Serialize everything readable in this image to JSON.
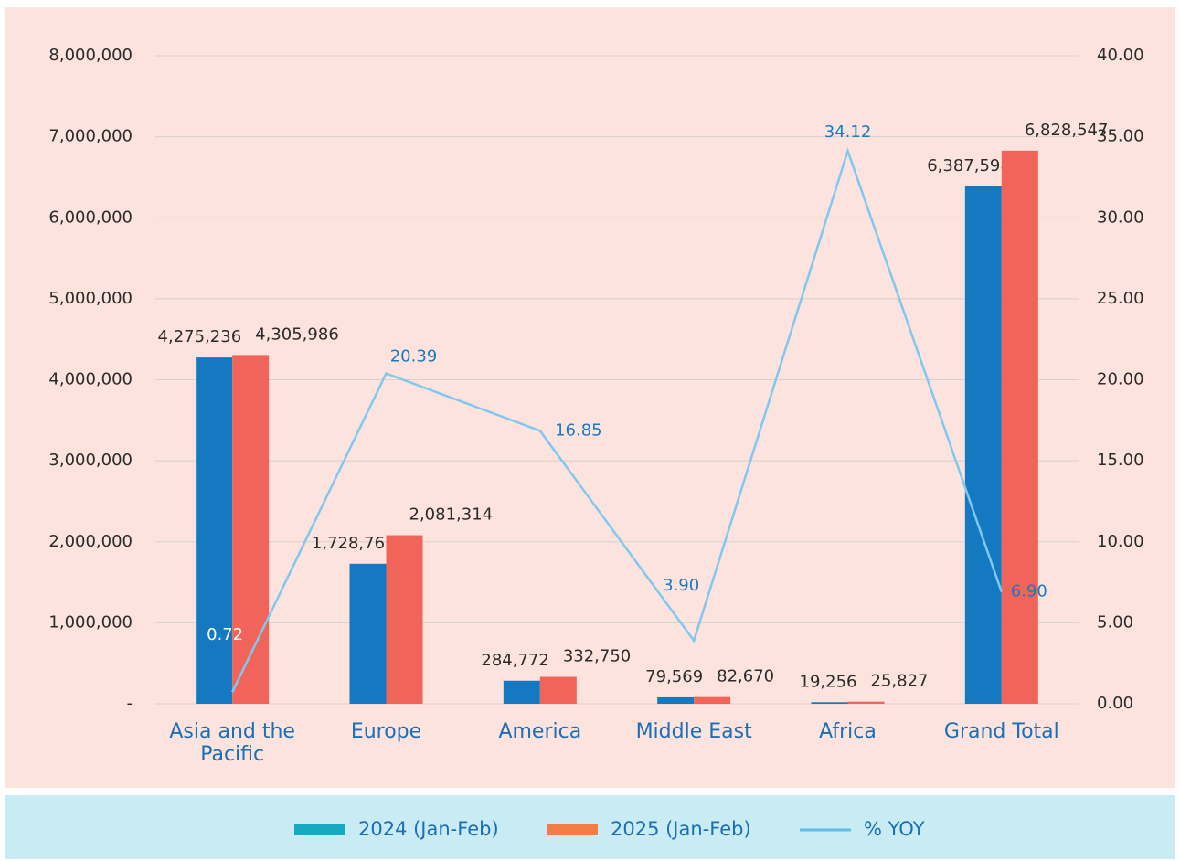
{
  "chart_data": {
    "type": "bar",
    "categories": [
      "Asia and the Pacific",
      "Europe",
      "America",
      "Middle East",
      "Africa",
      "Grand Total"
    ],
    "series": [
      {
        "name": "2024 (Jan-Feb)",
        "color": "#1479c0",
        "legend_color": "#17a9bf",
        "values": [
          4275236,
          1728765,
          284772,
          79569,
          19256,
          6387598
        ],
        "value_labels": [
          "4,275,236",
          "1,728,765",
          "284,772",
          "79,569",
          "19,256",
          "6,387,598"
        ]
      },
      {
        "name": "2025 (Jan-Feb)",
        "color": "#f0645a",
        "legend_color": "#f27c45",
        "values": [
          4305986,
          2081314,
          332750,
          82670,
          25827,
          6828547
        ],
        "value_labels": [
          "4,305,986",
          "2,081,314",
          "332,750",
          "82,670",
          "25,827",
          "6,828,547"
        ]
      },
      {
        "name": "% YOY",
        "type": "line",
        "axis": "y2",
        "color": "#7fc8ef",
        "legend_color": "#5bbfea",
        "values": [
          0.72,
          20.39,
          16.85,
          3.9,
          34.12,
          6.9
        ],
        "value_labels": [
          "0.72",
          "20.39",
          "16.85",
          "3.90",
          "34.12",
          "6.90"
        ]
      }
    ],
    "ylim": [
      0,
      8000000
    ],
    "yticks": [
      {
        "value": 0,
        "label": "-"
      },
      {
        "value": 1000000,
        "label": "1,000,000"
      },
      {
        "value": 2000000,
        "label": "2,000,000"
      },
      {
        "value": 3000000,
        "label": "3,000,000"
      },
      {
        "value": 4000000,
        "label": "4,000,000"
      },
      {
        "value": 5000000,
        "label": "5,000,000"
      },
      {
        "value": 6000000,
        "label": "6,000,000"
      },
      {
        "value": 7000000,
        "label": "7,000,000"
      },
      {
        "value": 8000000,
        "label": "8,000,000"
      }
    ],
    "y2lim": [
      0,
      40
    ],
    "y2ticks": [
      {
        "value": 0,
        "label": "0.00"
      },
      {
        "value": 5,
        "label": "5.00"
      },
      {
        "value": 10,
        "label": "10.00"
      },
      {
        "value": 15,
        "label": "15.00"
      },
      {
        "value": 20,
        "label": "20.00"
      },
      {
        "value": 25,
        "label": "25.00"
      },
      {
        "value": 30,
        "label": "30.00"
      },
      {
        "value": 35,
        "label": "35.00"
      },
      {
        "value": 40,
        "label": "40.00"
      }
    ],
    "grid": true,
    "legend": "bottom"
  }
}
